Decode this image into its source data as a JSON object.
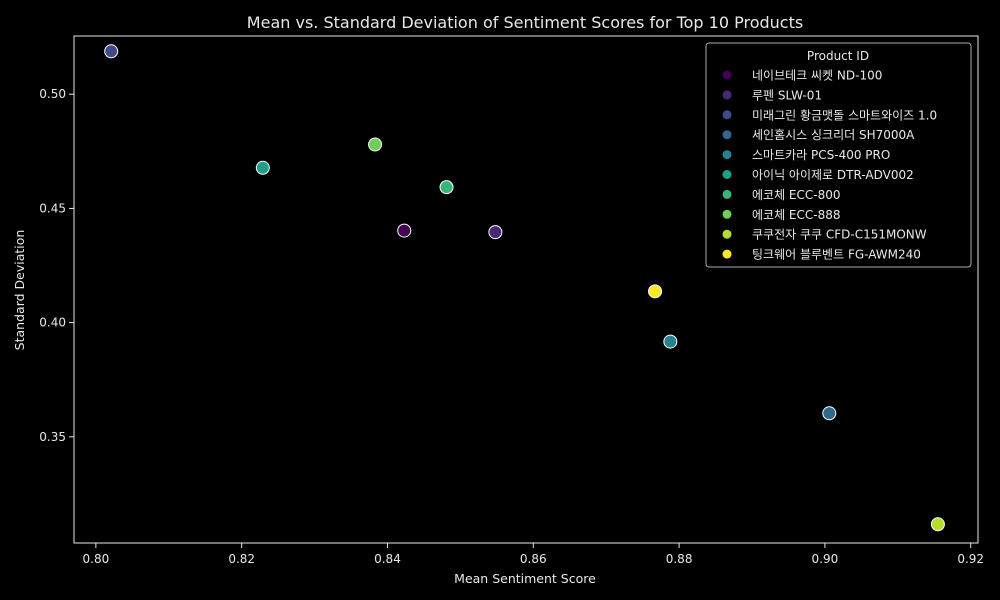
{
  "chart_data": {
    "type": "scatter",
    "title": "Mean vs. Standard Deviation of Sentiment Scores for Top 10 Products",
    "xlabel": "Mean Sentiment Score",
    "ylabel": "Standard Deviation",
    "xlim": [
      0.797,
      0.921
    ],
    "ylim": [
      0.3035,
      0.5255
    ],
    "x_ticks": [
      0.8,
      0.82,
      0.84,
      0.86,
      0.88,
      0.9,
      0.92
    ],
    "x_tick_labels": [
      "0.80",
      "0.82",
      "0.84",
      "0.86",
      "0.88",
      "0.90",
      "0.92"
    ],
    "y_ticks": [
      0.35,
      0.4,
      0.45,
      0.5
    ],
    "y_tick_labels": [
      "0.35",
      "0.40",
      "0.45",
      "0.50"
    ],
    "grid": false,
    "legend": {
      "title": "Product ID",
      "placement": "top-right"
    },
    "series": [
      {
        "name": "네이브테크 씨켓 ND-100",
        "color": "#440154",
        "x": 0.8423,
        "y": 0.4403
      },
      {
        "name": "루펜 SLW-01",
        "color": "#482878",
        "x": 0.8548,
        "y": 0.4396
      },
      {
        "name": "미래그린 황금맷돌 스마트와이즈 1.0",
        "color": "#3e4a89",
        "x": 0.8021,
        "y": 0.5188
      },
      {
        "name": "세인홈시스 싱크리더 SH7000A",
        "color": "#31688e",
        "x": 0.9006,
        "y": 0.3603
      },
      {
        "name": "스마트카라 PCS-400 PRO",
        "color": "#26828e",
        "x": 0.8788,
        "y": 0.3917
      },
      {
        "name": "아이닉 아이제로 DTR-ADV002",
        "color": "#1f9e89",
        "x": 0.8229,
        "y": 0.4678
      },
      {
        "name": "에코체 ECC-800",
        "color": "#35b779",
        "x": 0.8481,
        "y": 0.4593
      },
      {
        "name": "에코체 ECC-888",
        "color": "#6ece58",
        "x": 0.8383,
        "y": 0.478
      },
      {
        "name": "쿠쿠전자 쿠쿠 CFD-C151MONW",
        "color": "#b5de2b",
        "x": 0.9155,
        "y": 0.3117
      },
      {
        "name": "팅크웨어 블루벤트 FG-AWM240",
        "color": "#fde725",
        "x": 0.8767,
        "y": 0.4137
      }
    ]
  }
}
